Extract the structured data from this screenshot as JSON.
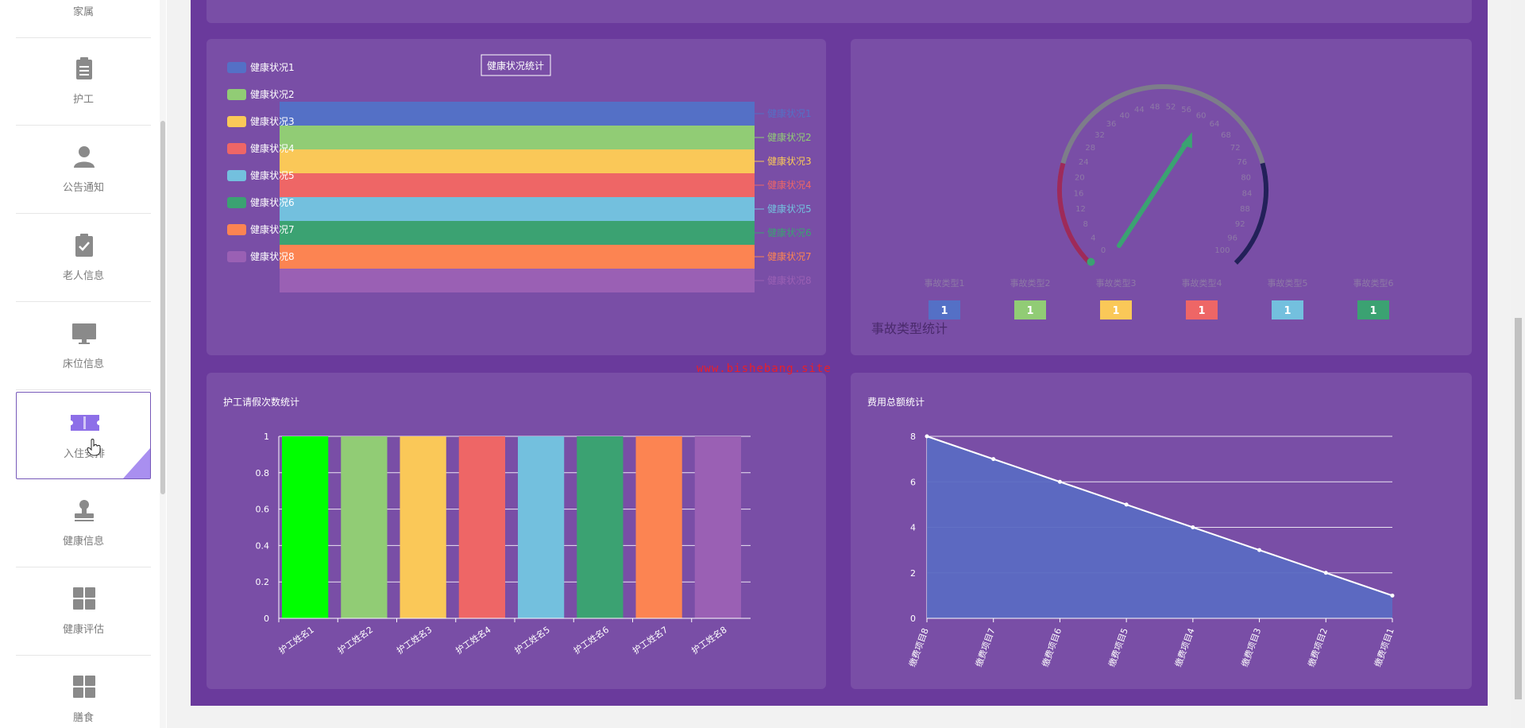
{
  "sidebar": {
    "items": [
      {
        "label": "家属",
        "icon": "person-icon"
      },
      {
        "label": "护工",
        "icon": "clipboard-icon"
      },
      {
        "label": "公告通知",
        "icon": "user-icon"
      },
      {
        "label": "老人信息",
        "icon": "clipboard-check-icon"
      },
      {
        "label": "床位信息",
        "icon": "monitor-icon"
      },
      {
        "label": "入住安排",
        "icon": "ticket-icon"
      },
      {
        "label": "健康信息",
        "icon": "stamp-icon"
      },
      {
        "label": "健康评估",
        "icon": "grid-icon"
      },
      {
        "label": "膳食",
        "icon": "grid-icon"
      }
    ]
  },
  "watermark": "www.bishebang.site",
  "colors": {
    "background": "#6a3a9c",
    "palette": [
      "#5470c6",
      "#91cc75",
      "#fac858",
      "#ee6666",
      "#73c0de",
      "#3ba272",
      "#fc8452",
      "#9a60b4"
    ]
  },
  "charts": {
    "funnel": {
      "title": "健康状况统计",
      "legend": [
        "健康状况1",
        "健康状况2",
        "健康状况3",
        "健康状况4",
        "健康状况5",
        "健康状况6",
        "健康状况7",
        "健康状况8"
      ],
      "side_labels": [
        "健康状况1",
        "健康状况2",
        "健康状况3",
        "健康状况4",
        "健康状况5",
        "健康状况6",
        "健康状况7",
        "健康状况8"
      ]
    },
    "gauge": {
      "title": "事故类型统计",
      "ticks": [
        "0",
        "4",
        "8",
        "12",
        "16",
        "20",
        "24",
        "28",
        "32",
        "36",
        "40",
        "44",
        "48",
        "52",
        "56",
        "60",
        "64",
        "68",
        "72",
        "76",
        "80",
        "84",
        "88",
        "92",
        "96",
        "100"
      ],
      "categories": [
        {
          "name": "事故类型1",
          "value": "1"
        },
        {
          "name": "事故类型2",
          "value": "1"
        },
        {
          "name": "事故类型3",
          "value": "1"
        },
        {
          "name": "事故类型4",
          "value": "1"
        },
        {
          "name": "事故类型5",
          "value": "1"
        },
        {
          "name": "事故类型6",
          "value": "1"
        }
      ]
    },
    "bar": {
      "title": "护工请假次数统计",
      "y_ticks": [
        "0",
        "0.2",
        "0.4",
        "0.6",
        "0.8",
        "1"
      ],
      "categories": [
        "护工姓名1",
        "护工姓名2",
        "护工姓名3",
        "护工姓名4",
        "护工姓名5",
        "护工姓名6",
        "护工姓名7",
        "护工姓名8"
      ]
    },
    "line": {
      "title": "费用总额统计",
      "y_ticks": [
        "0",
        "2",
        "4",
        "6",
        "8"
      ],
      "categories": [
        "缴费项目8",
        "缴费项目7",
        "缴费项目6",
        "缴费项目5",
        "缴费项目4",
        "缴费项目3",
        "缴费项目2",
        "缴费项目1"
      ]
    }
  },
  "chart_data": [
    {
      "type": "funnel",
      "title": "健康状况统计",
      "categories": [
        "健康状况1",
        "健康状况2",
        "健康状况3",
        "健康状况4",
        "健康状况5",
        "健康状况6",
        "健康状况7",
        "健康状况8"
      ],
      "values": [
        1,
        1,
        1,
        1,
        1,
        1,
        1,
        1
      ],
      "legend": "top-left"
    },
    {
      "type": "gauge",
      "title": "事故类型统计",
      "range": [
        0,
        100
      ],
      "needle_value": 60,
      "categories": [
        "事故类型1",
        "事故类型2",
        "事故类型3",
        "事故类型4",
        "事故类型5",
        "事故类型6"
      ],
      "values": [
        1,
        1,
        1,
        1,
        1,
        1
      ]
    },
    {
      "type": "bar",
      "title": "护工请假次数统计",
      "categories": [
        "护工姓名1",
        "护工姓名2",
        "护工姓名3",
        "护工姓名4",
        "护工姓名5",
        "护工姓名6",
        "护工姓名7",
        "护工姓名8"
      ],
      "values": [
        1,
        1,
        1,
        1,
        1,
        1,
        1,
        1
      ],
      "ylim": [
        0,
        1
      ],
      "grid": true
    },
    {
      "type": "area",
      "title": "费用总额统计",
      "categories": [
        "缴费项目8",
        "缴费项目7",
        "缴费项目6",
        "缴费项目5",
        "缴费项目4",
        "缴费项目3",
        "缴费项目2",
        "缴费项目1"
      ],
      "values": [
        8,
        7,
        6,
        5,
        4,
        3,
        2,
        1
      ],
      "ylim": [
        0,
        8
      ],
      "grid": true
    }
  ]
}
